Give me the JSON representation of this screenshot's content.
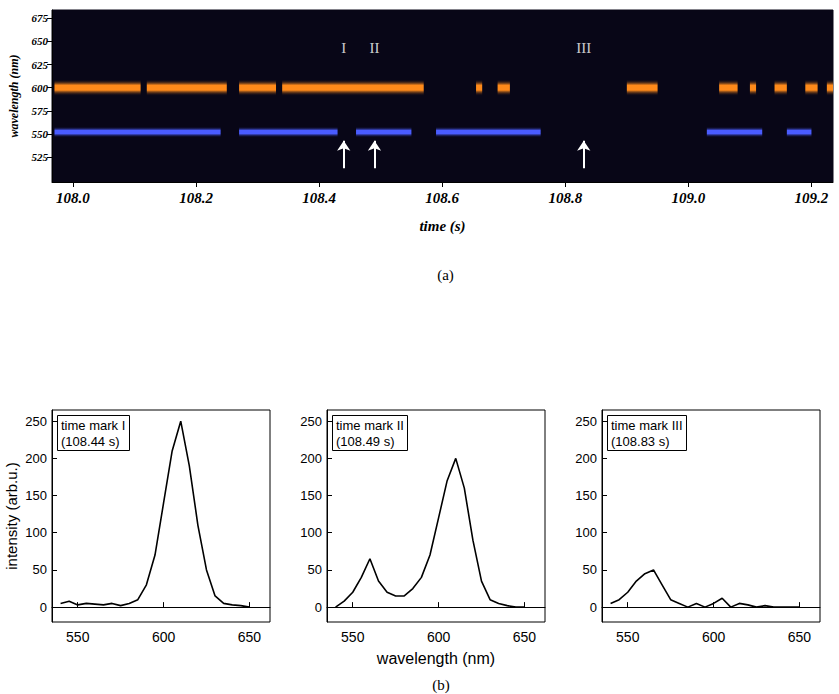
{
  "chart_data": [
    {
      "type": "spectrogram",
      "x_label": "time (s)",
      "y_label": "wavelength (nm)",
      "panel_label": "(a)",
      "xlim": [
        107.966,
        109.235
      ],
      "xticks": [
        {
          "value": 108,
          "label": "108.0"
        },
        108.2,
        108.4,
        108.6,
        108.8,
        {
          "value": 109,
          "label": "109.0"
        },
        109.2
      ],
      "ylim": [
        498,
        684
      ],
      "yticks": [
        525,
        550,
        575,
        600,
        625,
        650,
        675
      ],
      "bands": [
        {
          "center": 600,
          "width": 18,
          "color": "#ff8a1a",
          "segments": [
            [
              107.97,
              108.11
            ],
            [
              108.12,
              108.25
            ],
            [
              108.27,
              108.33
            ],
            [
              108.34,
              108.57
            ],
            [
              108.655,
              108.665
            ],
            [
              108.69,
              108.71
            ],
            [
              108.9,
              108.95
            ],
            [
              109.05,
              109.08
            ],
            [
              109.1,
              109.11
            ],
            [
              109.14,
              109.16
            ],
            [
              109.19,
              109.21
            ],
            [
              109.225,
              109.235
            ]
          ]
        },
        {
          "center": 552,
          "width": 12,
          "color": "#4a5cff",
          "segments": [
            [
              107.97,
              108.24
            ],
            [
              108.27,
              108.43
            ],
            [
              108.46,
              108.55
            ],
            [
              108.59,
              108.76
            ],
            [
              109.03,
              109.12
            ],
            [
              109.16,
              109.2
            ]
          ]
        }
      ],
      "markers": [
        {
          "label": "I",
          "x": 108.44
        },
        {
          "label": "II",
          "x": 108.49
        },
        {
          "label": "III",
          "x": 108.83
        }
      ]
    },
    {
      "type": "line",
      "annotation": [
        "time mark I",
        "(108.44 s)"
      ],
      "y_label": "intensity (arb.u.)",
      "color": "#000000",
      "xlim": [
        535,
        662
      ],
      "xticks": [
        550,
        600,
        650
      ],
      "ylim": [
        -20,
        265
      ],
      "yticks": [
        0,
        50,
        100,
        150,
        200,
        250
      ],
      "x": [
        540,
        545,
        550,
        555,
        560,
        565,
        570,
        575,
        580,
        585,
        590,
        595,
        600,
        605,
        610,
        615,
        620,
        625,
        630,
        635,
        640,
        645,
        650
      ],
      "values": [
        5,
        8,
        3,
        5,
        4,
        3,
        5,
        2,
        5,
        10,
        30,
        70,
        140,
        210,
        250,
        190,
        110,
        50,
        15,
        5,
        3,
        2,
        0
      ]
    },
    {
      "type": "line",
      "annotation": [
        "time mark II",
        "(108.49 s)"
      ],
      "x_label": "wavelength (nm)",
      "panel_label": "(b)",
      "color": "#000000",
      "xlim": [
        535,
        662
      ],
      "xticks": [
        550,
        600,
        650
      ],
      "ylim": [
        -20,
        265
      ],
      "yticks": [
        0,
        50,
        100,
        150,
        200,
        250
      ],
      "x": [
        540,
        545,
        550,
        555,
        560,
        565,
        570,
        575,
        580,
        585,
        590,
        595,
        600,
        605,
        610,
        615,
        620,
        625,
        630,
        635,
        640,
        645,
        650
      ],
      "values": [
        0,
        8,
        20,
        40,
        65,
        35,
        20,
        15,
        15,
        25,
        40,
        70,
        120,
        170,
        200,
        160,
        90,
        35,
        10,
        5,
        2,
        0,
        0
      ]
    },
    {
      "type": "line",
      "annotation": [
        "time mark III",
        "(108.83 s)"
      ],
      "color": "#000000",
      "xlim": [
        535,
        662
      ],
      "xticks": [
        550,
        600,
        650
      ],
      "ylim": [
        -20,
        265
      ],
      "yticks": [
        0,
        50,
        100,
        150,
        200,
        250
      ],
      "x": [
        540,
        545,
        550,
        555,
        560,
        565,
        570,
        575,
        580,
        585,
        590,
        595,
        600,
        605,
        610,
        615,
        620,
        625,
        630,
        635,
        640,
        645,
        650
      ],
      "values": [
        5,
        10,
        20,
        35,
        45,
        50,
        30,
        10,
        5,
        0,
        5,
        0,
        5,
        12,
        0,
        5,
        3,
        0,
        2,
        0,
        0,
        0,
        0
      ]
    }
  ]
}
